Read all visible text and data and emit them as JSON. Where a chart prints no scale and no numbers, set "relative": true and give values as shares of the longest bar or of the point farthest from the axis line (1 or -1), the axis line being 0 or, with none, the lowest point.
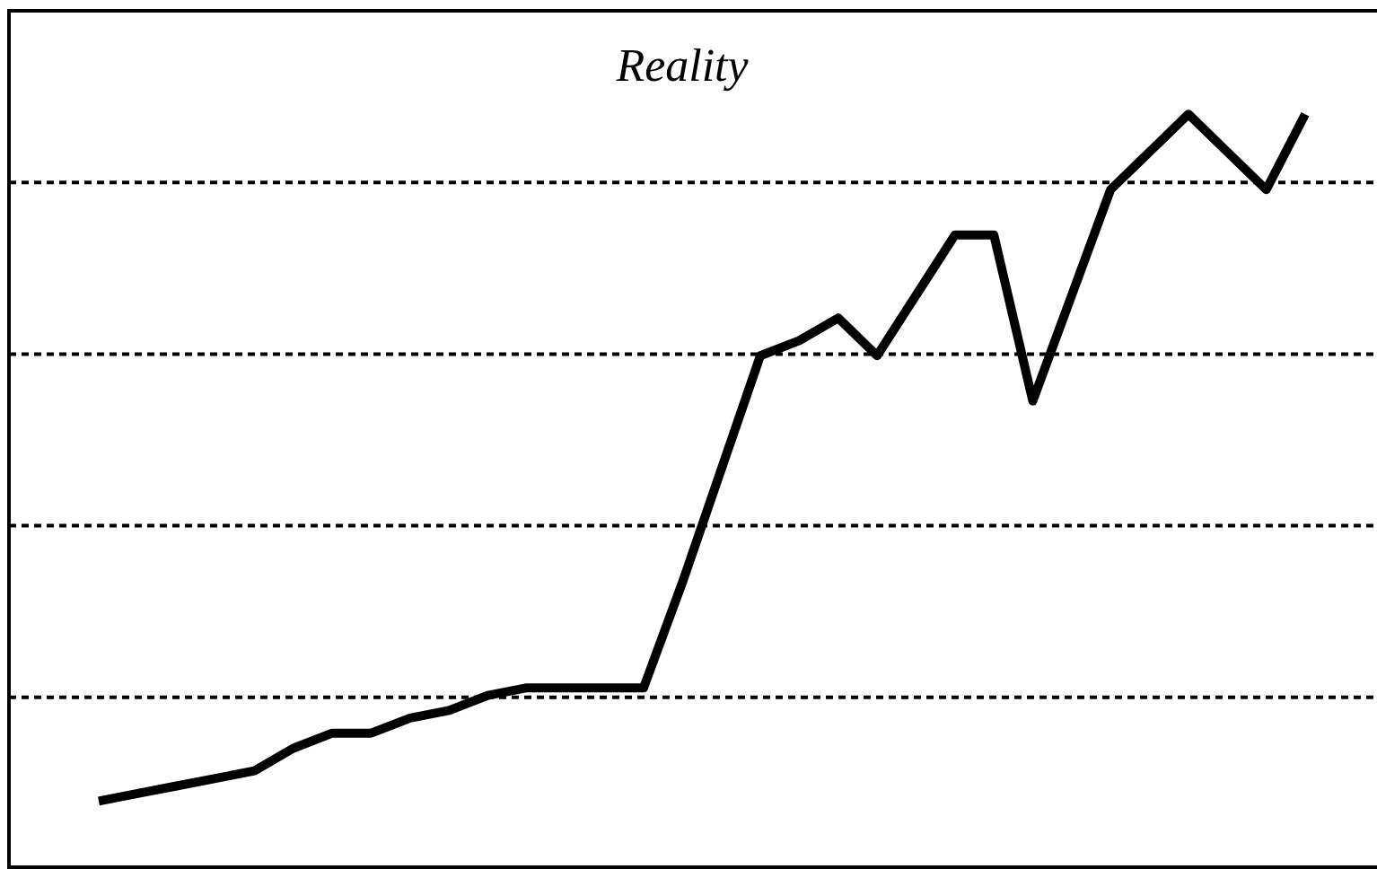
{
  "chart_data": {
    "type": "line",
    "title": "Reality",
    "relative": true,
    "grid": "y",
    "categories": [
      null,
      null,
      null,
      null,
      null,
      null,
      null,
      null,
      null,
      null,
      null,
      null,
      null,
      null,
      null,
      null,
      null,
      null,
      null,
      null,
      null,
      null,
      null,
      null,
      null,
      null,
      null,
      null,
      null,
      null,
      null,
      null
    ],
    "series": [
      {
        "color": "#000000",
        "values": [
          0.09,
          0.1,
          0.11,
          0.12,
          0.13,
          0.16,
          0.18,
          0.18,
          0.2,
          0.21,
          0.23,
          0.24,
          0.24,
          0.24,
          0.24,
          0.38,
          0.53,
          0.68,
          0.7,
          0.73,
          0.68,
          0.76,
          0.84,
          0.84,
          0.62,
          0.76,
          0.9,
          0.95,
          1,
          0.95,
          0.9,
          1
        ]
      }
    ]
  }
}
